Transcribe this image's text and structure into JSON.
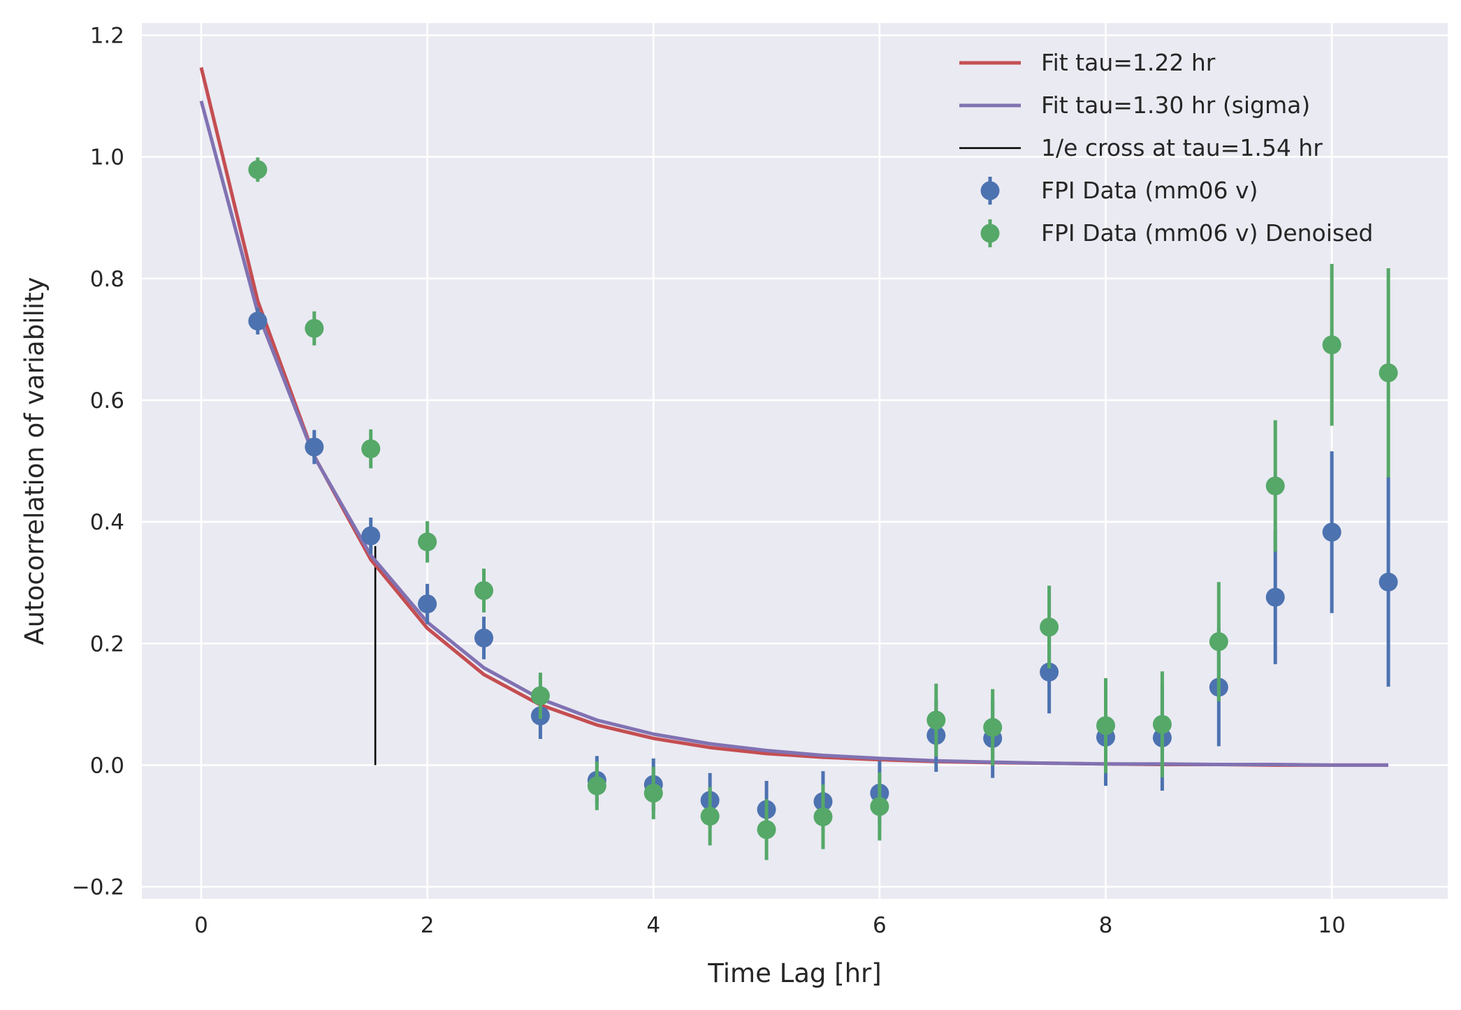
{
  "chart_data": {
    "type": "scatter",
    "title": "",
    "xlabel": "Time Lag [hr]",
    "ylabel": "Autocorrelation of variability",
    "xlim": [
      -0.525,
      11.025
    ],
    "ylim": [
      -0.22,
      1.22
    ],
    "xticks": [
      0,
      2,
      4,
      6,
      8,
      10
    ],
    "yticks": [
      -0.2,
      0.0,
      0.2,
      0.4,
      0.6,
      0.8,
      1.0,
      1.2
    ],
    "xtick_labels": [
      "0",
      "2",
      "4",
      "6",
      "8",
      "10"
    ],
    "ytick_labels": [
      "−0.2",
      "0.0",
      "0.2",
      "0.4",
      "0.6",
      "0.8",
      "1.0",
      "1.2"
    ],
    "grid": true,
    "legend_position": "top-right",
    "background_color": "#eaeaf2",
    "lines": [
      {
        "name": "Fit tau=1.22 hr",
        "color": "#c44e52",
        "x": [
          0,
          0.5,
          1.0,
          1.5,
          2.0,
          2.5,
          3.0,
          3.5,
          4.0,
          4.5,
          5.0,
          5.5,
          6.0,
          6.5,
          7.0,
          7.5,
          8.0,
          8.5,
          9.0,
          9.5,
          10.0,
          10.5
        ],
        "y": [
          1.147,
          0.763,
          0.508,
          0.338,
          0.225,
          0.149,
          0.099,
          0.066,
          0.044,
          0.029,
          0.019,
          0.013,
          0.009,
          0.006,
          0.004,
          0.003,
          0.002,
          0.001,
          0.001,
          0.0,
          0.0,
          0.0
        ]
      },
      {
        "name": "Fit tau=1.30 hr (sigma)",
        "color": "#8172b2",
        "x": [
          0,
          0.5,
          1.0,
          1.5,
          2.0,
          2.5,
          3.0,
          3.5,
          4.0,
          4.5,
          5.0,
          5.5,
          6.0,
          6.5,
          7.0,
          7.5,
          8.0,
          8.5,
          9.0,
          9.5,
          10.0,
          10.5
        ],
        "y": [
          1.092,
          0.744,
          0.507,
          0.345,
          0.235,
          0.16,
          0.109,
          0.074,
          0.051,
          0.035,
          0.024,
          0.016,
          0.011,
          0.007,
          0.005,
          0.003,
          0.002,
          0.002,
          0.001,
          0.001,
          0.0,
          0.0
        ]
      }
    ],
    "vlines": [
      {
        "name": "1/e cross at tau=1.54 hr",
        "color": "#000000",
        "x": 1.54,
        "ymin": 0.0,
        "ymax": 0.36
      }
    ],
    "series": [
      {
        "name": "FPI Data (mm06 v)",
        "color": "#4c72b0",
        "x": [
          0.5,
          1.0,
          1.5,
          2.0,
          2.5,
          3.0,
          3.5,
          4.0,
          4.5,
          5.0,
          5.5,
          6.0,
          6.5,
          7.0,
          7.5,
          8.0,
          8.5,
          9.0,
          9.5,
          10.0,
          10.5
        ],
        "y": [
          0.73,
          0.523,
          0.377,
          0.265,
          0.209,
          0.081,
          -0.025,
          -0.032,
          -0.058,
          -0.073,
          -0.06,
          -0.046,
          0.049,
          0.044,
          0.153,
          0.046,
          0.045,
          0.128,
          0.276,
          0.383,
          0.301
        ],
        "yerr": [
          0.022,
          0.028,
          0.03,
          0.033,
          0.035,
          0.038,
          0.04,
          0.043,
          0.045,
          0.047,
          0.05,
          0.053,
          0.06,
          0.065,
          0.068,
          0.08,
          0.087,
          0.097,
          0.11,
          0.133,
          0.172
        ]
      },
      {
        "name": "FPI Data (mm06 v) Denoised",
        "color": "#55a868",
        "x": [
          0.5,
          1.0,
          1.5,
          2.0,
          2.5,
          3.0,
          3.5,
          4.0,
          4.5,
          5.0,
          5.5,
          6.0,
          6.5,
          7.0,
          7.5,
          8.0,
          8.5,
          9.0,
          9.5,
          10.0,
          10.5
        ],
        "y": [
          0.979,
          0.718,
          0.52,
          0.367,
          0.287,
          0.114,
          -0.034,
          -0.046,
          -0.084,
          -0.106,
          -0.085,
          -0.068,
          0.074,
          0.062,
          0.227,
          0.065,
          0.067,
          0.203,
          0.459,
          0.691,
          0.645
        ],
        "yerr": [
          0.02,
          0.028,
          0.032,
          0.034,
          0.036,
          0.038,
          0.04,
          0.043,
          0.048,
          0.05,
          0.053,
          0.056,
          0.06,
          0.063,
          0.068,
          0.078,
          0.087,
          0.098,
          0.108,
          0.133,
          0.172
        ]
      }
    ]
  }
}
